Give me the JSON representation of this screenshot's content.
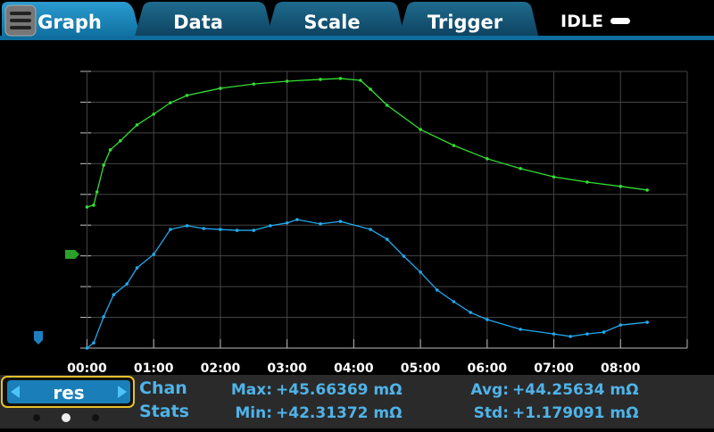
{
  "tabs": [
    "Graph",
    "Data",
    "Scale",
    "Trigger"
  ],
  "status": "IDLE",
  "channel": "res",
  "stats": {
    "heading": [
      "Chan",
      "Stats"
    ],
    "max": {
      "label": "Max:",
      "value": "+45.66369 mΩ"
    },
    "min": {
      "label": "Min:",
      "value": "+42.31372 mΩ"
    },
    "avg": {
      "label": "Avg:",
      "value": "+44.25634 mΩ"
    },
    "std": {
      "label": "Std:",
      "value": "+1.179091 mΩ"
    }
  },
  "chart_data": {
    "type": "line",
    "xlim": [
      -0.1,
      9
    ],
    "ylim": [
      0,
      9
    ],
    "xticks": [
      {
        "value": 0,
        "label": "00:00"
      },
      {
        "value": 1,
        "label": "01:00"
      },
      {
        "value": 2,
        "label": "02:00"
      },
      {
        "value": 3,
        "label": "03:00"
      },
      {
        "value": 4,
        "label": "04:00"
      },
      {
        "value": 5,
        "label": "05:00"
      },
      {
        "value": 6,
        "label": "06:00"
      },
      {
        "value": 7,
        "label": "07:00"
      },
      {
        "value": 8,
        "label": "08:00"
      },
      {
        "value": 9,
        "label": null
      }
    ],
    "yticks": [
      0,
      1,
      2,
      3,
      4,
      5,
      6,
      7,
      8,
      9
    ],
    "grid": true,
    "series": [
      {
        "color": "#33dd33",
        "x": [
          0,
          0.1,
          0.15,
          0.25,
          0.35,
          0.5,
          0.75,
          1,
          1.25,
          1.5,
          2,
          2.5,
          3,
          3.5,
          3.8,
          4.1,
          4.25,
          4.5,
          5,
          5.5,
          6,
          6.5,
          7,
          7.5,
          8,
          8.4
        ],
        "values": [
          4.59,
          4.65,
          5.08,
          5.95,
          6.45,
          6.74,
          7.26,
          7.61,
          7.98,
          8.22,
          8.45,
          8.59,
          8.68,
          8.74,
          8.77,
          8.71,
          8.42,
          7.9,
          7.11,
          6.59,
          6.16,
          5.84,
          5.57,
          5.4,
          5.26,
          5.14
        ]
      },
      {
        "color": "#22aaee",
        "x": [
          0,
          0.1,
          0.25,
          0.4,
          0.6,
          0.75,
          1,
          1.25,
          1.5,
          1.75,
          2,
          2.25,
          2.5,
          2.75,
          3,
          3.15,
          3.5,
          3.8,
          4.25,
          4.5,
          4.75,
          5,
          5.25,
          5.5,
          5.75,
          6,
          6.5,
          7,
          7.25,
          7.5,
          7.75,
          8,
          8.4
        ],
        "values": [
          0,
          0.17,
          1.02,
          1.74,
          2.09,
          2.61,
          3.05,
          3.86,
          3.98,
          3.89,
          3.86,
          3.83,
          3.83,
          3.98,
          4.07,
          4.18,
          4.04,
          4.12,
          3.86,
          3.54,
          2.99,
          2.47,
          1.89,
          1.51,
          1.16,
          0.93,
          0.61,
          0.46,
          0.38,
          0.46,
          0.52,
          0.75,
          0.84
        ]
      }
    ]
  }
}
